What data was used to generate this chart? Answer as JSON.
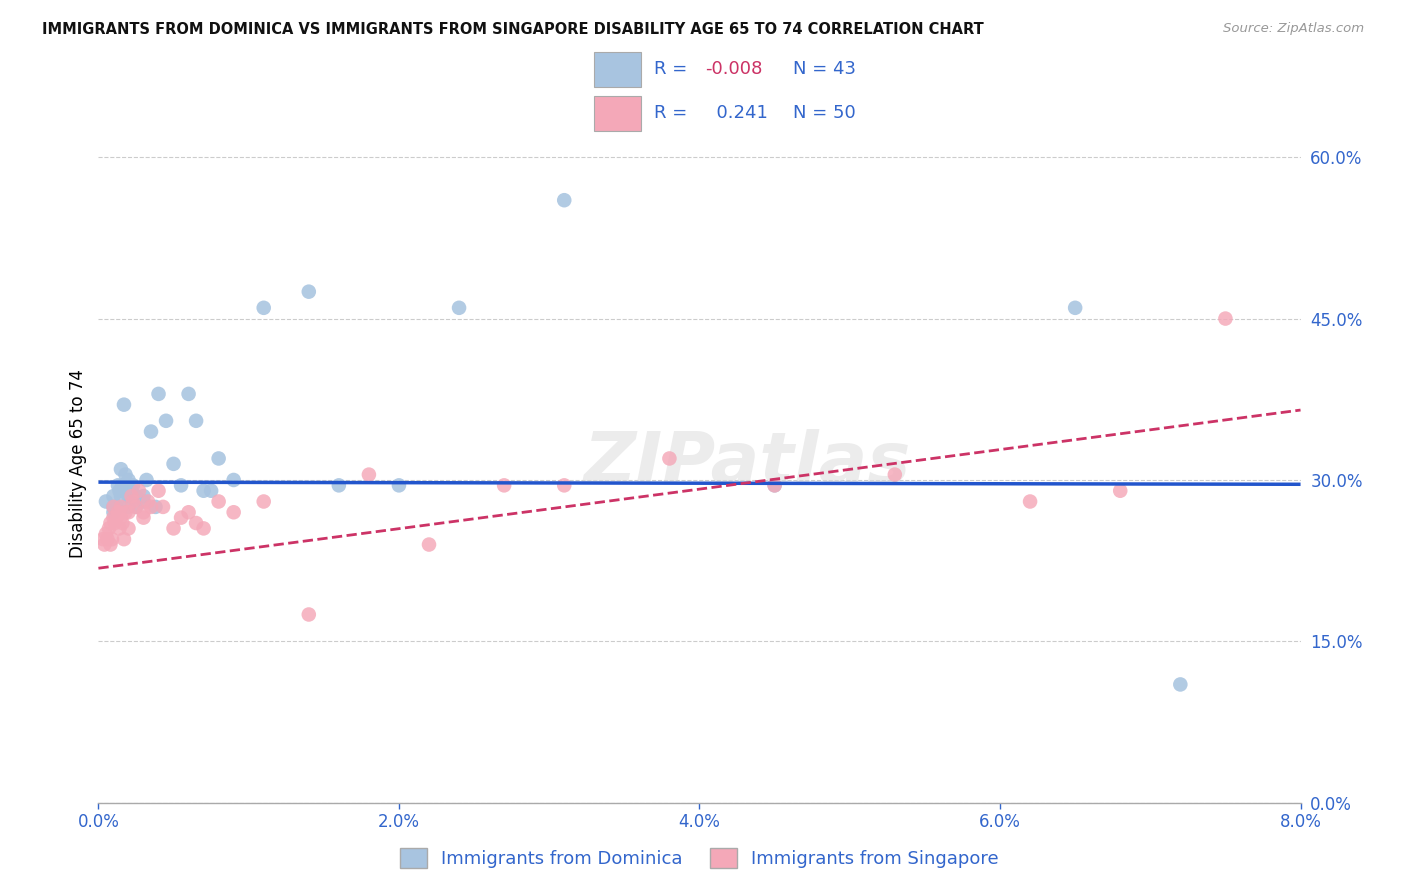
{
  "title": "IMMIGRANTS FROM DOMINICA VS IMMIGRANTS FROM SINGAPORE DISABILITY AGE 65 TO 74 CORRELATION CHART",
  "source": "Source: ZipAtlas.com",
  "xlabel_ticks": [
    "0.0%",
    "2.0%",
    "4.0%",
    "6.0%",
    "8.0%"
  ],
  "xlabel_vals": [
    0.0,
    0.02,
    0.04,
    0.06,
    0.08
  ],
  "ylabel_ticks": [
    "0.0%",
    "15.0%",
    "30.0%",
    "45.0%",
    "60.0%"
  ],
  "ylabel_vals": [
    0.0,
    0.15,
    0.3,
    0.45,
    0.6
  ],
  "xmin": 0.0,
  "xmax": 0.08,
  "ymin": 0.0,
  "ymax": 0.63,
  "ylabel": "Disability Age 65 to 74",
  "legend_label1": "Immigrants from Dominica",
  "legend_label2": "Immigrants from Singapore",
  "R1_text": "-0.008",
  "N1_text": "43",
  "R2_text": "0.241",
  "N2_text": "50",
  "color1": "#a8c4e0",
  "color2": "#f4a8b8",
  "line1_color": "#2255cc",
  "line2_color": "#cc3366",
  "watermark": "ZIPatlas",
  "dominica_line_y0": 0.298,
  "dominica_line_y1": 0.296,
  "singapore_line_y0": 0.218,
  "singapore_line_y1": 0.365,
  "dominica_x": [
    0.0005,
    0.001,
    0.001,
    0.001,
    0.0012,
    0.0013,
    0.0014,
    0.0015,
    0.0015,
    0.0016,
    0.0017,
    0.0018,
    0.002,
    0.002,
    0.002,
    0.0022,
    0.0023,
    0.0025,
    0.0025,
    0.003,
    0.003,
    0.0032,
    0.0035,
    0.0038,
    0.004,
    0.0045,
    0.005,
    0.0055,
    0.006,
    0.0065,
    0.007,
    0.0075,
    0.008,
    0.009,
    0.011,
    0.014,
    0.016,
    0.02,
    0.024,
    0.031,
    0.045,
    0.065,
    0.072
  ],
  "dominica_y": [
    0.28,
    0.27,
    0.275,
    0.285,
    0.275,
    0.295,
    0.29,
    0.31,
    0.285,
    0.295,
    0.37,
    0.305,
    0.3,
    0.285,
    0.275,
    0.29,
    0.295,
    0.285,
    0.275,
    0.285,
    0.28,
    0.3,
    0.345,
    0.275,
    0.38,
    0.355,
    0.315,
    0.295,
    0.38,
    0.355,
    0.29,
    0.29,
    0.32,
    0.3,
    0.46,
    0.475,
    0.295,
    0.295,
    0.46,
    0.56,
    0.295,
    0.46,
    0.11
  ],
  "singapore_x": [
    0.0003,
    0.0004,
    0.0005,
    0.0006,
    0.0007,
    0.0008,
    0.0008,
    0.0009,
    0.001,
    0.001,
    0.0011,
    0.0012,
    0.0013,
    0.0014,
    0.0015,
    0.0015,
    0.0016,
    0.0017,
    0.0018,
    0.002,
    0.002,
    0.0022,
    0.0023,
    0.0025,
    0.0027,
    0.003,
    0.003,
    0.0033,
    0.0035,
    0.004,
    0.0043,
    0.005,
    0.0055,
    0.006,
    0.0065,
    0.007,
    0.008,
    0.009,
    0.011,
    0.014,
    0.018,
    0.022,
    0.027,
    0.031,
    0.038,
    0.045,
    0.053,
    0.062,
    0.068,
    0.075
  ],
  "singapore_y": [
    0.245,
    0.24,
    0.25,
    0.245,
    0.255,
    0.26,
    0.24,
    0.245,
    0.265,
    0.275,
    0.26,
    0.265,
    0.27,
    0.255,
    0.275,
    0.265,
    0.26,
    0.245,
    0.27,
    0.255,
    0.27,
    0.285,
    0.28,
    0.275,
    0.29,
    0.265,
    0.27,
    0.28,
    0.275,
    0.29,
    0.275,
    0.255,
    0.265,
    0.27,
    0.26,
    0.255,
    0.28,
    0.27,
    0.28,
    0.175,
    0.305,
    0.24,
    0.295,
    0.295,
    0.32,
    0.295,
    0.305,
    0.28,
    0.29,
    0.45
  ]
}
